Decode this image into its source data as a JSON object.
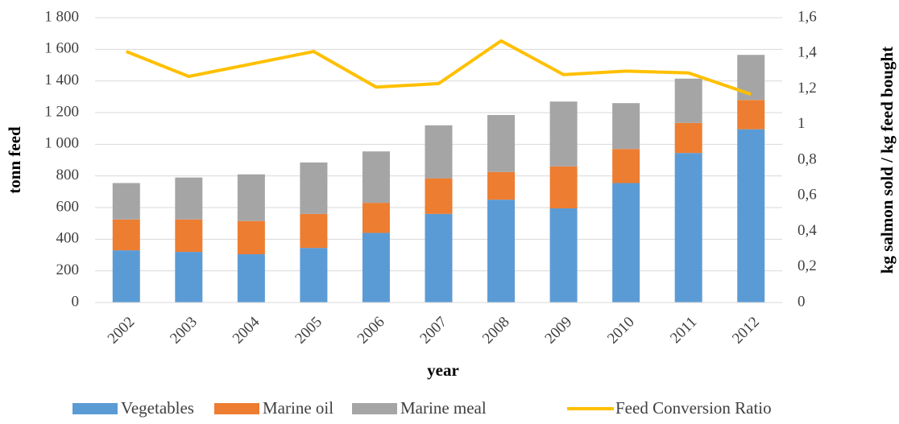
{
  "chart_data": {
    "type": "bar",
    "stacked": true,
    "x_label": "year",
    "y_label": "tonn feed",
    "y2_label": "kg salmon sold / kg feed bought",
    "categories": [
      "2002",
      "2003",
      "2004",
      "2005",
      "2006",
      "2007",
      "2008",
      "2009",
      "2010",
      "2011",
      "2012"
    ],
    "series": [
      {
        "name": "Vegetables",
        "color": "#5b9bd5",
        "values": [
          330,
          320,
          305,
          345,
          440,
          560,
          650,
          595,
          755,
          945,
          1095
        ]
      },
      {
        "name": "Marine oil",
        "color": "#ed7d31",
        "values": [
          195,
          205,
          210,
          215,
          190,
          225,
          175,
          265,
          215,
          190,
          185
        ]
      },
      {
        "name": "Marine meal",
        "color": "#a5a5a5",
        "values": [
          230,
          265,
          295,
          325,
          325,
          335,
          360,
          410,
          290,
          280,
          285
        ]
      },
      {
        "name": "Feed Conversion Ratio",
        "color": "#ffc000",
        "type": "line",
        "axis": "y2",
        "values": [
          1.41,
          1.27,
          1.34,
          1.41,
          1.21,
          1.23,
          1.47,
          1.28,
          1.3,
          1.29,
          1.17
        ]
      }
    ],
    "ylim": [
      0,
      1800
    ],
    "yticks": [
      0,
      200,
      400,
      600,
      800,
      {
        "value": 1000,
        "label": "1 000"
      },
      {
        "value": 1200,
        "label": "1 200"
      },
      {
        "value": 1400,
        "label": "1 400"
      },
      {
        "value": 1600,
        "label": "1 600"
      },
      {
        "value": 1800,
        "label": "1 800"
      }
    ],
    "y2lim": [
      0,
      1.6
    ],
    "y2ticks": [
      0,
      {
        "value": 0.2,
        "label": "0,2"
      },
      {
        "value": 0.4,
        "label": "0,4"
      },
      {
        "value": 0.6,
        "label": "0,6"
      },
      {
        "value": 0.8,
        "label": "0,8"
      },
      1,
      {
        "value": 1.2,
        "label": "1,2"
      },
      {
        "value": 1.4,
        "label": "1,4"
      },
      {
        "value": 1.6,
        "label": "1,6"
      }
    ],
    "grid": true,
    "legend": "bottom"
  }
}
